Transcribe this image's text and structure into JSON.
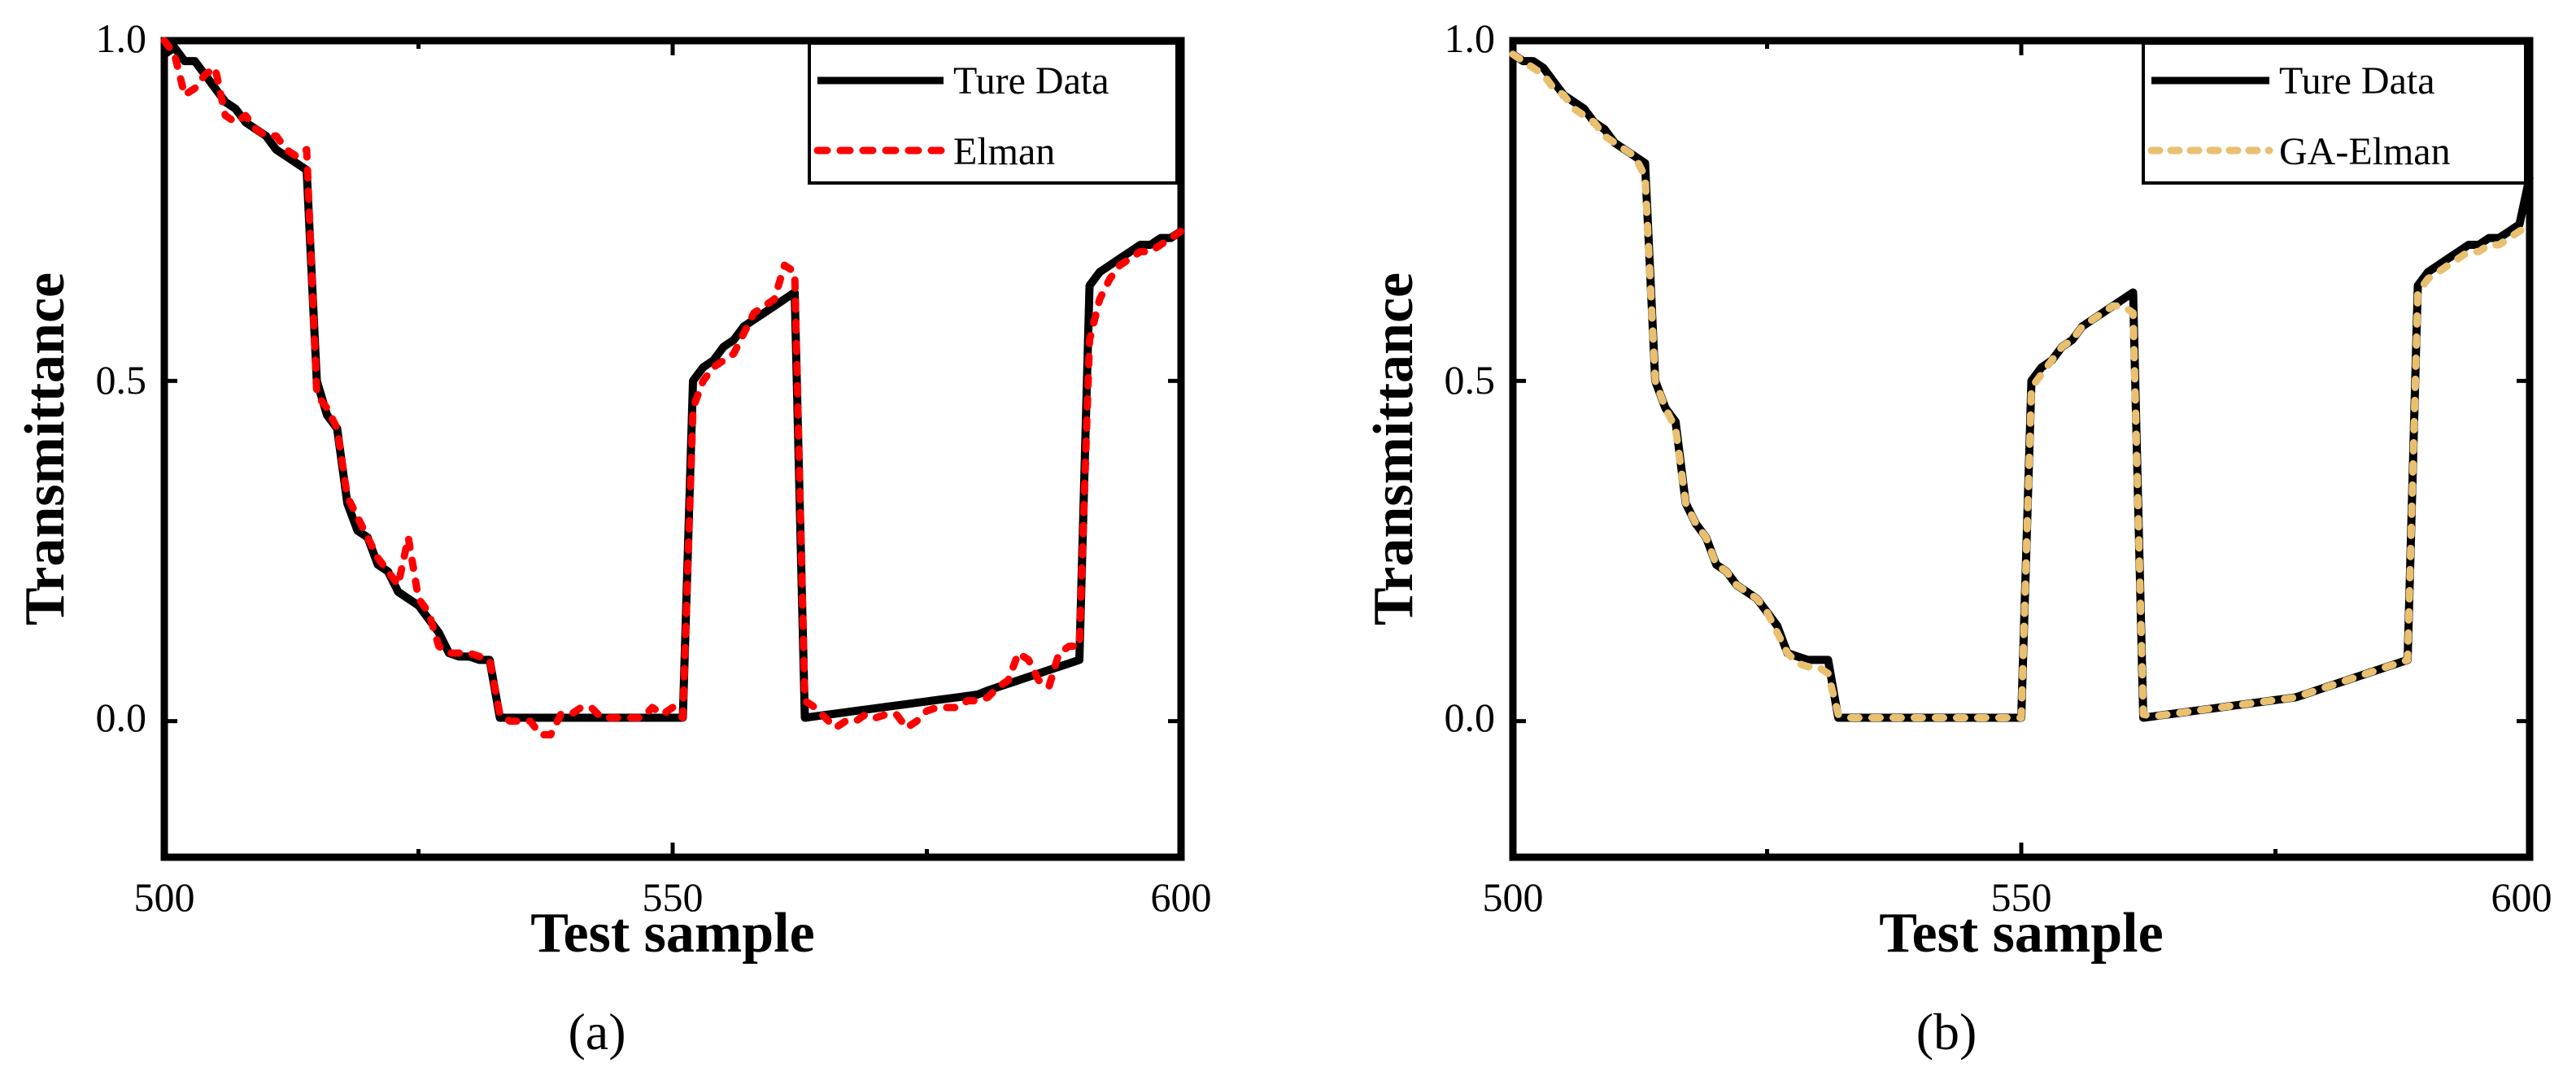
{
  "chart_data": [
    {
      "type": "line",
      "panel_label": "(a)",
      "xlabel": "Test sample",
      "ylabel": "Transmittance",
      "xlim": [
        500,
        600
      ],
      "ylim": [
        -0.2,
        1.0
      ],
      "xticks": [
        500,
        550,
        600
      ],
      "xtick_labels": [
        "500",
        "550",
        "600"
      ],
      "yticks": [
        0.0,
        0.5,
        1.0
      ],
      "ytick_labels": [
        "0.0",
        "0.5",
        "1.0"
      ],
      "legend_position": "top-right",
      "series": [
        {
          "name": "Ture Data",
          "color": "#000000",
          "style": "solid",
          "x": [
            500,
            501,
            502,
            503,
            504,
            505,
            506,
            507,
            508,
            509,
            510,
            511,
            512,
            513,
            514,
            515,
            516,
            517,
            518,
            519,
            520,
            521,
            522,
            523,
            524,
            525,
            526,
            527,
            528,
            529,
            530,
            531,
            532,
            533,
            534,
            535,
            536,
            537,
            538,
            539,
            540,
            541,
            542,
            543,
            544,
            545,
            546,
            547,
            548,
            549,
            550,
            551,
            552,
            553,
            554,
            555,
            556,
            557,
            558,
            559,
            560,
            561,
            562,
            563,
            564,
            565,
            566,
            567,
            568,
            569,
            570,
            571,
            572,
            573,
            574,
            575,
            576,
            577,
            578,
            579,
            580,
            581,
            582,
            583,
            584,
            585,
            586,
            587,
            588,
            589,
            590,
            591,
            592,
            593,
            594,
            595,
            596,
            597,
            598,
            599,
            600
          ],
          "y": [
            0.98,
            0.99,
            0.97,
            0.97,
            0.95,
            0.93,
            0.91,
            0.9,
            0.88,
            0.87,
            0.86,
            0.84,
            0.83,
            0.82,
            0.81,
            0.5,
            0.45,
            0.43,
            0.32,
            0.28,
            0.27,
            0.23,
            0.22,
            0.19,
            0.18,
            0.17,
            0.15,
            0.13,
            0.1,
            0.095,
            0.095,
            0.09,
            0.09,
            0.005,
            0.005,
            0.005,
            0.005,
            0.005,
            0.005,
            0.005,
            0.005,
            0.005,
            0.005,
            0.005,
            0.005,
            0.005,
            0.005,
            0.005,
            0.005,
            0.005,
            0.005,
            0.005,
            0.5,
            0.52,
            0.53,
            0.55,
            0.56,
            0.58,
            0.59,
            0.6,
            0.61,
            0.62,
            0.63,
            0.005,
            0.007,
            0.009,
            0.011,
            0.013,
            0.015,
            0.017,
            0.019,
            0.021,
            0.023,
            0.025,
            0.027,
            0.029,
            0.031,
            0.033,
            0.035,
            0.037,
            0.039,
            0.045,
            0.05,
            0.055,
            0.06,
            0.065,
            0.07,
            0.075,
            0.08,
            0.085,
            0.09,
            0.64,
            0.66,
            0.67,
            0.68,
            0.69,
            0.7,
            0.7,
            0.71,
            0.71,
            0.72
          ]
        },
        {
          "name": "Elman",
          "color": "#ff0000",
          "style": "dotted",
          "x": [
            500,
            501,
            502,
            503,
            504,
            505,
            506,
            507,
            508,
            509,
            510,
            511,
            512,
            513,
            514,
            515,
            516,
            517,
            518,
            519,
            520,
            521,
            522,
            523,
            524,
            525,
            526,
            527,
            528,
            529,
            530,
            531,
            532,
            533,
            534,
            535,
            536,
            537,
            538,
            539,
            540,
            541,
            542,
            543,
            544,
            545,
            546,
            547,
            548,
            549,
            550,
            551,
            552,
            553,
            554,
            555,
            556,
            557,
            558,
            559,
            560,
            561,
            562,
            563,
            564,
            565,
            566,
            567,
            568,
            569,
            570,
            571,
            572,
            573,
            574,
            575,
            576,
            577,
            578,
            579,
            580,
            581,
            582,
            583,
            584,
            585,
            586,
            587,
            588,
            589,
            590,
            591,
            592,
            593,
            594,
            595,
            596,
            597,
            598,
            599,
            600
          ],
          "y": [
            1.0,
            0.98,
            0.92,
            0.93,
            0.95,
            0.96,
            0.89,
            0.88,
            0.89,
            0.87,
            0.86,
            0.86,
            0.84,
            0.83,
            0.84,
            0.48,
            0.46,
            0.43,
            0.33,
            0.3,
            0.27,
            0.24,
            0.22,
            0.2,
            0.27,
            0.18,
            0.16,
            0.11,
            0.1,
            0.1,
            0.1,
            0.095,
            0.09,
            0.01,
            0.0,
            0.0,
            0.0,
            -0.02,
            -0.02,
            0.01,
            0.01,
            0.02,
            0.02,
            0.005,
            0.005,
            0.005,
            0.005,
            0.005,
            0.02,
            0.01,
            0.02,
            0.005,
            0.46,
            0.5,
            0.52,
            0.53,
            0.54,
            0.57,
            0.6,
            0.61,
            0.62,
            0.67,
            0.66,
            0.03,
            0.02,
            0.005,
            -0.01,
            0.0,
            0.0,
            0.01,
            0.005,
            0.01,
            0.01,
            -0.01,
            0.0,
            0.015,
            0.02,
            0.02,
            0.02,
            0.03,
            0.03,
            0.035,
            0.05,
            0.06,
            0.1,
            0.09,
            0.06,
            0.05,
            0.1,
            0.11,
            0.11,
            0.56,
            0.62,
            0.65,
            0.67,
            0.68,
            0.69,
            0.69,
            0.7,
            0.71,
            0.72
          ]
        }
      ],
      "legend": [
        "Ture Data",
        "Elman"
      ]
    },
    {
      "type": "line",
      "panel_label": "(b)",
      "xlabel": "Test sample",
      "ylabel": "Transmittance",
      "xlim": [
        500,
        600
      ],
      "ylim": [
        -0.2,
        1.0
      ],
      "xticks": [
        500,
        550,
        600
      ],
      "xtick_labels": [
        "500",
        "550",
        "600"
      ],
      "yticks": [
        0.0,
        0.5,
        1.0
      ],
      "ytick_labels": [
        "0.0",
        "0.5",
        "1.0"
      ],
      "legend_position": "top-right",
      "series": [
        {
          "name": "Ture Data",
          "color": "#000000",
          "style": "solid",
          "x": [
            500,
            501,
            502,
            503,
            504,
            505,
            506,
            507,
            508,
            509,
            510,
            511,
            512,
            513,
            514,
            515,
            516,
            517,
            518,
            519,
            520,
            521,
            522,
            523,
            524,
            525,
            526,
            527,
            528,
            529,
            530,
            531,
            532,
            533,
            534,
            535,
            536,
            537,
            538,
            539,
            540,
            541,
            542,
            543,
            544,
            545,
            546,
            547,
            548,
            549,
            550,
            551,
            552,
            553,
            554,
            555,
            556,
            557,
            558,
            559,
            560,
            561,
            562,
            563,
            564,
            565,
            566,
            567,
            568,
            569,
            570,
            571,
            572,
            573,
            574,
            575,
            576,
            577,
            578,
            579,
            580,
            581,
            582,
            583,
            584,
            585,
            586,
            587,
            588,
            589,
            590,
            591,
            592,
            593,
            594,
            595,
            596,
            597,
            598,
            599,
            600
          ],
          "y": [
            0.98,
            0.97,
            0.97,
            0.96,
            0.94,
            0.92,
            0.91,
            0.9,
            0.88,
            0.87,
            0.85,
            0.84,
            0.83,
            0.82,
            0.5,
            0.46,
            0.44,
            0.32,
            0.29,
            0.27,
            0.23,
            0.22,
            0.2,
            0.19,
            0.18,
            0.16,
            0.14,
            0.1,
            0.095,
            0.09,
            0.09,
            0.09,
            0.005,
            0.005,
            0.005,
            0.005,
            0.005,
            0.005,
            0.005,
            0.005,
            0.005,
            0.005,
            0.005,
            0.005,
            0.005,
            0.005,
            0.005,
            0.005,
            0.005,
            0.005,
            0.005,
            0.5,
            0.52,
            0.53,
            0.55,
            0.56,
            0.58,
            0.59,
            0.6,
            0.61,
            0.62,
            0.63,
            0.005,
            0.007,
            0.009,
            0.011,
            0.013,
            0.015,
            0.017,
            0.019,
            0.021,
            0.023,
            0.025,
            0.027,
            0.029,
            0.031,
            0.033,
            0.035,
            0.04,
            0.045,
            0.05,
            0.055,
            0.06,
            0.065,
            0.07,
            0.075,
            0.08,
            0.085,
            0.09,
            0.64,
            0.66,
            0.67,
            0.68,
            0.69,
            0.7,
            0.7,
            0.71,
            0.71,
            0.72,
            0.73,
            0.8
          ]
        },
        {
          "name": "GA-Elman",
          "color": "#e8c070",
          "style": "dotted",
          "x": [
            500,
            501,
            502,
            503,
            504,
            505,
            506,
            507,
            508,
            509,
            510,
            511,
            512,
            513,
            514,
            515,
            516,
            517,
            518,
            519,
            520,
            521,
            522,
            523,
            524,
            525,
            526,
            527,
            528,
            529,
            530,
            531,
            532,
            533,
            534,
            535,
            536,
            537,
            538,
            539,
            540,
            541,
            542,
            543,
            544,
            545,
            546,
            547,
            548,
            549,
            550,
            551,
            552,
            553,
            554,
            555,
            556,
            557,
            558,
            559,
            560,
            561,
            562,
            563,
            564,
            565,
            566,
            567,
            568,
            569,
            570,
            571,
            572,
            573,
            574,
            575,
            576,
            577,
            578,
            579,
            580,
            581,
            582,
            583,
            584,
            585,
            586,
            587,
            588,
            589,
            590,
            591,
            592,
            593,
            594,
            595,
            596,
            597,
            598,
            599,
            600
          ],
          "y": [
            0.98,
            0.97,
            0.96,
            0.95,
            0.93,
            0.92,
            0.9,
            0.89,
            0.88,
            0.86,
            0.85,
            0.84,
            0.83,
            0.8,
            0.5,
            0.46,
            0.43,
            0.32,
            0.29,
            0.27,
            0.23,
            0.22,
            0.2,
            0.19,
            0.18,
            0.16,
            0.13,
            0.1,
            0.085,
            0.08,
            0.08,
            0.07,
            0.01,
            0.005,
            0.005,
            0.005,
            0.005,
            0.005,
            0.005,
            0.005,
            0.005,
            0.005,
            0.005,
            0.005,
            0.005,
            0.005,
            0.005,
            0.005,
            0.005,
            0.005,
            0.005,
            0.49,
            0.51,
            0.53,
            0.55,
            0.56,
            0.58,
            0.59,
            0.6,
            0.61,
            0.61,
            0.6,
            0.01,
            0.007,
            0.009,
            0.011,
            0.013,
            0.015,
            0.017,
            0.019,
            0.021,
            0.023,
            0.025,
            0.027,
            0.029,
            0.031,
            0.033,
            0.035,
            0.04,
            0.045,
            0.05,
            0.055,
            0.06,
            0.065,
            0.07,
            0.075,
            0.08,
            0.085,
            0.09,
            0.63,
            0.65,
            0.66,
            0.67,
            0.68,
            0.69,
            0.69,
            0.7,
            0.7,
            0.71,
            0.72,
            0.73
          ]
        }
      ],
      "legend": [
        "Ture Data",
        "GA-Elman"
      ]
    }
  ]
}
